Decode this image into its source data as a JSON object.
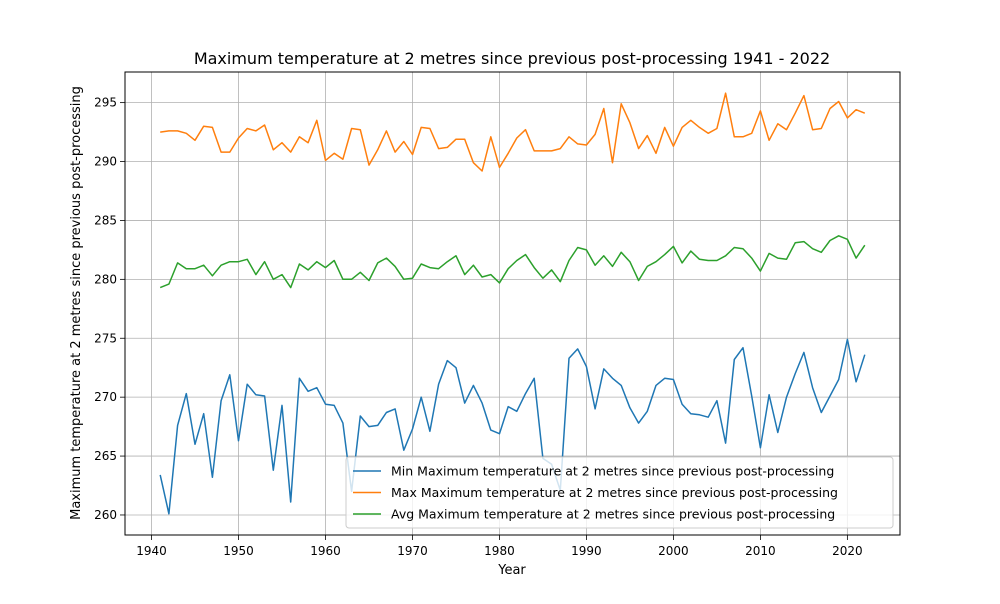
{
  "chart_data": {
    "type": "line",
    "title": "Maximum temperature at 2 metres since previous post-processing 1941 - 2022",
    "xlabel": "Year",
    "ylabel": "Maximum temperature at 2 metres since previous post-processing",
    "xlim": [
      1936.95,
      2026.05
    ],
    "ylim": [
      258.3,
      297.6
    ],
    "x_ticks": [
      1940,
      1950,
      1960,
      1970,
      1980,
      1990,
      2000,
      2010,
      2020
    ],
    "y_ticks": [
      260,
      265,
      270,
      275,
      280,
      285,
      290,
      295
    ],
    "grid": true,
    "legend_position": "lower-right",
    "x": [
      1941,
      1942,
      1943,
      1944,
      1945,
      1946,
      1947,
      1948,
      1949,
      1950,
      1951,
      1952,
      1953,
      1954,
      1955,
      1956,
      1957,
      1958,
      1959,
      1960,
      1961,
      1962,
      1963,
      1964,
      1965,
      1966,
      1967,
      1968,
      1969,
      1970,
      1971,
      1972,
      1973,
      1974,
      1975,
      1976,
      1977,
      1978,
      1979,
      1980,
      1981,
      1982,
      1983,
      1984,
      1985,
      1986,
      1987,
      1988,
      1989,
      1990,
      1991,
      1992,
      1993,
      1994,
      1995,
      1996,
      1997,
      1998,
      1999,
      2000,
      2001,
      2002,
      2003,
      2004,
      2005,
      2006,
      2007,
      2008,
      2009,
      2010,
      2011,
      2012,
      2013,
      2014,
      2015,
      2016,
      2017,
      2018,
      2019,
      2020,
      2021,
      2022
    ],
    "series": [
      {
        "name": "Min Maximum temperature at 2 metres since previous post-processing",
        "color": "#1f77b4",
        "values": [
          263.4,
          260.1,
          267.6,
          270.3,
          266.0,
          268.6,
          263.2,
          269.7,
          271.9,
          266.3,
          271.1,
          270.2,
          270.1,
          263.8,
          269.3,
          261.1,
          271.6,
          270.5,
          270.8,
          269.4,
          269.3,
          267.8,
          262.0,
          268.4,
          267.5,
          267.6,
          268.7,
          269.0,
          265.5,
          267.3,
          270.0,
          267.1,
          271.1,
          273.1,
          272.5,
          269.5,
          271.0,
          269.5,
          267.2,
          266.9,
          269.2,
          268.8,
          270.3,
          271.6,
          264.8,
          264.3,
          262.1,
          273.3,
          274.1,
          272.6,
          269.0,
          272.4,
          271.6,
          271.0,
          269.1,
          267.8,
          268.8,
          271.0,
          271.6,
          271.5,
          269.4,
          268.6,
          268.5,
          268.3,
          269.7,
          266.1,
          273.2,
          274.2,
          270.1,
          265.7,
          270.2,
          267.0,
          270.0,
          272.0,
          273.8,
          270.8,
          268.7,
          270.1,
          271.5,
          274.9,
          271.3,
          273.6
        ]
      },
      {
        "name": "Max Maximum temperature at 2 metres since previous post-processing",
        "color": "#ff7f0e",
        "values": [
          292.5,
          292.6,
          292.6,
          292.4,
          291.8,
          293.0,
          292.9,
          290.8,
          290.8,
          292.0,
          292.8,
          292.6,
          293.1,
          291.0,
          291.6,
          290.8,
          292.1,
          291.6,
          293.5,
          290.1,
          290.7,
          290.2,
          292.8,
          292.7,
          289.7,
          291.0,
          292.6,
          290.8,
          291.7,
          290.6,
          292.9,
          292.8,
          291.1,
          291.2,
          291.9,
          291.9,
          289.9,
          289.2,
          292.1,
          289.5,
          290.7,
          292.0,
          292.7,
          290.9,
          290.9,
          290.9,
          291.1,
          292.1,
          291.5,
          291.4,
          292.3,
          294.5,
          289.9,
          294.9,
          293.3,
          291.1,
          292.2,
          290.7,
          292.9,
          291.3,
          292.9,
          293.5,
          292.9,
          292.4,
          292.8,
          295.8,
          292.1,
          292.1,
          292.4,
          294.3,
          291.8,
          293.2,
          292.7,
          294.1,
          295.6,
          292.7,
          292.8,
          294.5,
          295.1,
          293.7,
          294.4,
          294.1
        ]
      },
      {
        "name": "Avg Maximum temperature at 2 metres since previous post-processing",
        "color": "#2ca02c",
        "values": [
          279.3,
          279.6,
          281.4,
          280.9,
          280.9,
          281.2,
          280.3,
          281.2,
          281.5,
          281.5,
          281.7,
          280.4,
          281.5,
          280.0,
          280.4,
          279.3,
          281.3,
          280.8,
          281.5,
          281.0,
          281.6,
          280.0,
          280.0,
          280.6,
          279.9,
          281.4,
          281.8,
          281.1,
          280.0,
          280.1,
          281.3,
          281.0,
          280.9,
          281.5,
          282.0,
          280.4,
          281.2,
          280.2,
          280.4,
          279.7,
          280.9,
          281.6,
          282.1,
          281.0,
          280.1,
          280.8,
          279.8,
          281.6,
          282.7,
          282.5,
          281.2,
          282.0,
          281.1,
          282.3,
          281.5,
          279.9,
          281.1,
          281.5,
          282.1,
          282.8,
          281.4,
          282.4,
          281.7,
          281.6,
          281.6,
          282.0,
          282.7,
          282.6,
          281.8,
          280.7,
          282.2,
          281.8,
          281.7,
          283.1,
          283.2,
          282.6,
          282.3,
          283.3,
          283.7,
          283.4,
          281.8,
          282.9
        ]
      }
    ]
  }
}
